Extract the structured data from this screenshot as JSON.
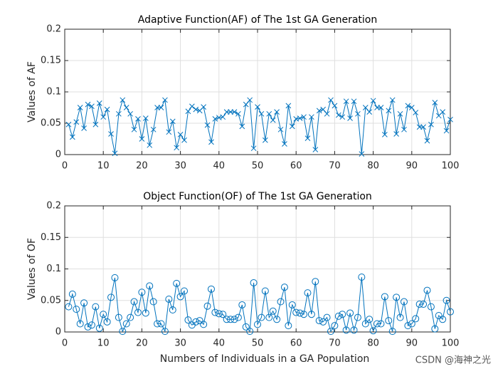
{
  "chart_data": [
    {
      "type": "line",
      "title": "Adaptive Function(AF) of The 1st GA Generation",
      "ylabel": "Values of AF",
      "marker": "x",
      "color": "#0072BD",
      "grid": true,
      "x": [
        1,
        2,
        3,
        4,
        5,
        6,
        7,
        8,
        9,
        10,
        11,
        12,
        13,
        14,
        15,
        16,
        17,
        18,
        19,
        20,
        21,
        22,
        23,
        24,
        25,
        26,
        27,
        28,
        29,
        30,
        31,
        32,
        33,
        34,
        35,
        36,
        37,
        38,
        39,
        40,
        41,
        42,
        43,
        44,
        45,
        46,
        47,
        48,
        49,
        50,
        51,
        52,
        53,
        54,
        55,
        56,
        57,
        58,
        59,
        60,
        61,
        62,
        63,
        64,
        65,
        66,
        67,
        68,
        69,
        70,
        71,
        72,
        73,
        74,
        75,
        76,
        77,
        78,
        79,
        80,
        81,
        82,
        83,
        84,
        85,
        86,
        87,
        88,
        89,
        90,
        91,
        92,
        93,
        94,
        95,
        96,
        97,
        98,
        99,
        100
      ],
      "values": [
        0.048,
        0.028,
        0.052,
        0.075,
        0.042,
        0.08,
        0.077,
        0.048,
        0.082,
        0.06,
        0.072,
        0.033,
        0.002,
        0.065,
        0.087,
        0.075,
        0.065,
        0.04,
        0.057,
        0.025,
        0.058,
        0.015,
        0.04,
        0.075,
        0.075,
        0.087,
        0.036,
        0.053,
        0.011,
        0.032,
        0.023,
        0.069,
        0.077,
        0.072,
        0.07,
        0.076,
        0.047,
        0.02,
        0.057,
        0.059,
        0.06,
        0.068,
        0.068,
        0.068,
        0.065,
        0.045,
        0.08,
        0.087,
        0.01,
        0.076,
        0.065,
        0.023,
        0.065,
        0.055,
        0.068,
        0.04,
        0.017,
        0.078,
        0.045,
        0.057,
        0.058,
        0.06,
        0.026,
        0.06,
        0.008,
        0.07,
        0.072,
        0.065,
        0.087,
        0.078,
        0.063,
        0.06,
        0.085,
        0.058,
        0.085,
        0.065,
        0.001,
        0.075,
        0.068,
        0.086,
        0.075,
        0.075,
        0.032,
        0.07,
        0.087,
        0.033,
        0.065,
        0.04,
        0.078,
        0.075,
        0.067,
        0.044,
        0.044,
        0.022,
        0.048,
        0.083,
        0.062,
        0.068,
        0.038,
        0.056
      ],
      "xlim": [
        0,
        100
      ],
      "xticks": [
        0,
        10,
        20,
        30,
        40,
        50,
        60,
        70,
        80,
        90,
        100
      ],
      "ylim": [
        0,
        0.2
      ],
      "yticks": [
        0,
        0.05,
        0.1,
        0.15,
        0.2
      ]
    },
    {
      "type": "line",
      "title": "Object Function(OF) of The 1st GA Generation",
      "ylabel": "Values of OF",
      "xlabel": "Numbers of Individuals in a GA Population",
      "marker": "o",
      "color": "#0072BD",
      "grid": true,
      "x": [
        1,
        2,
        3,
        4,
        5,
        6,
        7,
        8,
        9,
        10,
        11,
        12,
        13,
        14,
        15,
        16,
        17,
        18,
        19,
        20,
        21,
        22,
        23,
        24,
        25,
        26,
        27,
        28,
        29,
        30,
        31,
        32,
        33,
        34,
        35,
        36,
        37,
        38,
        39,
        40,
        41,
        42,
        43,
        44,
        45,
        46,
        47,
        48,
        49,
        50,
        51,
        52,
        53,
        54,
        55,
        56,
        57,
        58,
        59,
        60,
        61,
        62,
        63,
        64,
        65,
        66,
        67,
        68,
        69,
        70,
        71,
        72,
        73,
        74,
        75,
        76,
        77,
        78,
        79,
        80,
        81,
        82,
        83,
        84,
        85,
        86,
        87,
        88,
        89,
        90,
        91,
        92,
        93,
        94,
        95,
        96,
        97,
        98,
        99,
        100
      ],
      "values": [
        0.04,
        0.06,
        0.036,
        0.013,
        0.046,
        0.008,
        0.011,
        0.04,
        0.006,
        0.028,
        0.016,
        0.055,
        0.086,
        0.023,
        0.001,
        0.013,
        0.023,
        0.048,
        0.031,
        0.063,
        0.03,
        0.073,
        0.048,
        0.013,
        0.013,
        0.001,
        0.052,
        0.035,
        0.077,
        0.056,
        0.065,
        0.019,
        0.011,
        0.016,
        0.018,
        0.012,
        0.041,
        0.068,
        0.031,
        0.029,
        0.028,
        0.02,
        0.02,
        0.02,
        0.023,
        0.043,
        0.008,
        0.001,
        0.078,
        0.012,
        0.023,
        0.065,
        0.023,
        0.033,
        0.02,
        0.048,
        0.071,
        0.01,
        0.043,
        0.031,
        0.03,
        0.028,
        0.062,
        0.028,
        0.08,
        0.018,
        0.016,
        0.023,
        0.001,
        0.01,
        0.025,
        0.028,
        0.003,
        0.03,
        0.003,
        0.023,
        0.087,
        0.013,
        0.02,
        0.002,
        0.013,
        0.013,
        0.056,
        0.018,
        0.001,
        0.055,
        0.023,
        0.048,
        0.01,
        0.013,
        0.021,
        0.044,
        0.044,
        0.066,
        0.04,
        0.005,
        0.026,
        0.02,
        0.05,
        0.032
      ],
      "xlim": [
        0,
        100
      ],
      "xticks": [
        0,
        10,
        20,
        30,
        40,
        50,
        60,
        70,
        80,
        90,
        100
      ],
      "ylim": [
        0,
        0.2
      ],
      "yticks": [
        0,
        0.05,
        0.1,
        0.15,
        0.2
      ]
    }
  ],
  "watermark": "CSDN @海神之光"
}
